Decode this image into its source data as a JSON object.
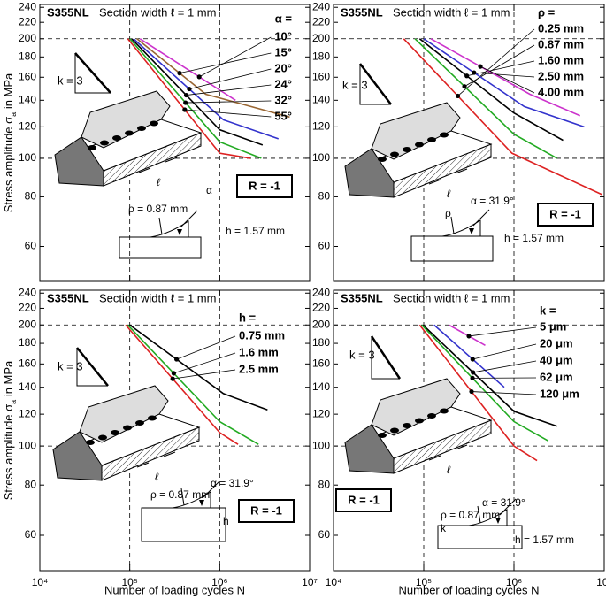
{
  "chart_data": [
    {
      "type": "line",
      "material": "S355NL",
      "section": "Section width ℓ = 1 mm",
      "y_label": [
        "Stress amplitude σ",
        "a",
        " in MPa"
      ],
      "xlim": [
        10000,
        10000000
      ],
      "xticks": [
        10000,
        100000,
        1000000,
        10000000
      ],
      "ylim": [
        49,
        244
      ],
      "yticks": [
        60,
        80,
        100,
        120,
        140,
        160,
        180,
        200,
        220,
        240
      ],
      "log_x": true,
      "log_y": true,
      "guides_x": [
        100000,
        1000000
      ],
      "guides_y": [
        100,
        200
      ],
      "legend_title": "α =",
      "series": [
        {
          "name": "10°",
          "color": "#cc33cc",
          "x": [
            130000,
            1500000
          ],
          "values": [
            200,
            140
          ]
        },
        {
          "name": "15°",
          "color": "#996633",
          "x": [
            120000,
            700000,
            6000000
          ],
          "values": [
            200,
            145,
            127
          ]
        },
        {
          "name": "20°",
          "color": "#3333cc",
          "x": [
            110000,
            1100000,
            4500000
          ],
          "values": [
            200,
            125,
            112
          ]
        },
        {
          "name": "24°",
          "color": "#000000",
          "x": [
            105000,
            1000000,
            3000000
          ],
          "values": [
            200,
            118,
            108
          ]
        },
        {
          "name": "32°",
          "color": "#22aa22",
          "x": [
            100000,
            1000000,
            2900000
          ],
          "values": [
            200,
            110,
            100
          ]
        },
        {
          "name": "55°",
          "color": "#dd2222",
          "x": [
            95000,
            1000000,
            2200000
          ],
          "values": [
            200,
            103,
            100
          ]
        }
      ],
      "load_ratio": "R = -1",
      "slope_label": "k = 3",
      "width_symbol": "ℓ",
      "notch_labels": [
        "ρ = 0.87 mm",
        "α",
        "h = 1.57 mm"
      ]
    },
    {
      "type": "line",
      "material": "S355NL",
      "section": "Section width ℓ = 1 mm",
      "xlim": [
        10000,
        10000000
      ],
      "xticks": [
        10000,
        100000,
        1000000,
        10000000
      ],
      "ylim": [
        49,
        244
      ],
      "yticks": [
        60,
        80,
        100,
        120,
        140,
        160,
        180,
        200,
        220,
        240
      ],
      "log_x": true,
      "log_y": true,
      "guides_x": [
        100000,
        1000000
      ],
      "guides_y": [
        100,
        200
      ],
      "legend_title": "ρ =",
      "series": [
        {
          "name": "0.25 mm",
          "color": "#dd2222",
          "x": [
            60000,
            950000,
            9500000
          ],
          "values": [
            200,
            103,
            81
          ]
        },
        {
          "name": "0.87 mm",
          "color": "#22aa22",
          "x": [
            80000,
            1000000,
            3000000
          ],
          "values": [
            200,
            115,
            100
          ]
        },
        {
          "name": "1.60 mm",
          "color": "#000000",
          "x": [
            90000,
            1000000,
            3500000
          ],
          "values": [
            200,
            130,
            111
          ]
        },
        {
          "name": "2.50 mm",
          "color": "#3333cc",
          "x": [
            100000,
            1300000,
            6000000
          ],
          "values": [
            200,
            135,
            120
          ]
        },
        {
          "name": "4.00 mm",
          "color": "#cc33cc",
          "x": [
            120000,
            1500000,
            5400000
          ],
          "values": [
            200,
            145,
            128
          ]
        }
      ],
      "load_ratio": "R = -1",
      "slope_label": "k = 3",
      "width_symbol": "ℓ",
      "notch_labels": [
        "ρ",
        "α = 31.9°",
        "h = 1.57 mm"
      ]
    },
    {
      "type": "line",
      "material": "S355NL",
      "section": "Section width ℓ = 1 mm",
      "y_label": [
        "Stress amplitude σ",
        "a",
        " in MPa"
      ],
      "x_label": "Number of loading cycles N",
      "xlim": [
        10000,
        10000000
      ],
      "xticks": [
        {
          "value": 10000,
          "label": "10⁴"
        },
        {
          "value": 100000,
          "label": "10⁵"
        },
        {
          "value": 1000000,
          "label": "10⁶"
        },
        {
          "value": 10000000,
          "label": "10⁷"
        }
      ],
      "ylim": [
        49,
        244
      ],
      "yticks": [
        60,
        80,
        100,
        120,
        140,
        160,
        180,
        200,
        220,
        240
      ],
      "log_x": true,
      "log_y": true,
      "guides_x": [
        100000,
        1000000
      ],
      "guides_y": [
        100,
        200
      ],
      "legend_title": "h =",
      "series": [
        {
          "name": "0.75 mm",
          "color": "#000000",
          "x": [
            100000,
            1100000,
            3400000
          ],
          "values": [
            200,
            135,
            123
          ]
        },
        {
          "name": "1.6 mm",
          "color": "#22aa22",
          "x": [
            95000,
            1000000,
            2700000
          ],
          "values": [
            200,
            115,
            101
          ]
        },
        {
          "name": "2.5 mm",
          "color": "#dd2222",
          "x": [
            90000,
            1000000,
            1600000
          ],
          "values": [
            200,
            108,
            101
          ]
        }
      ],
      "load_ratio": "R = -1",
      "slope_label": "k = 3",
      "width_symbol": "ℓ",
      "notch_labels": [
        "ρ = 0.87 mm",
        "α = 31.9°",
        "h"
      ]
    },
    {
      "type": "line",
      "material": "S355NL",
      "section": "Section width ℓ = 1 mm",
      "x_label": "Number of loading cycles N",
      "xlim": [
        10000,
        10000000
      ],
      "xticks": [
        {
          "value": 10000,
          "label": "10⁴"
        },
        {
          "value": 100000,
          "label": "10⁵"
        },
        {
          "value": 1000000,
          "label": "10⁶"
        },
        {
          "value": 10000000,
          "label": "10⁷"
        }
      ],
      "ylim": [
        49,
        244
      ],
      "yticks": [
        60,
        80,
        100,
        120,
        140,
        160,
        180,
        200,
        220,
        240
      ],
      "log_x": true,
      "log_y": true,
      "guides_x": [
        100000,
        1000000
      ],
      "guides_y": [
        100,
        200
      ],
      "legend_title": "k =",
      "series": [
        {
          "name": "5 μm",
          "color": "#cc33cc",
          "x": [
            190000,
            480000
          ],
          "values": [
            200,
            178
          ]
        },
        {
          "name": "20 μm",
          "color": "#3333cc",
          "x": [
            130000,
            780000
          ],
          "values": [
            200,
            140
          ]
        },
        {
          "name": "40 μm",
          "color": "#000000",
          "x": [
            98000,
            1000000,
            3000000
          ],
          "values": [
            200,
            122,
            112
          ]
        },
        {
          "name": "62 μm",
          "color": "#22aa22",
          "x": [
            95000,
            1000000,
            2400000
          ],
          "values": [
            200,
            115,
            103
          ]
        },
        {
          "name": "120 μm",
          "color": "#dd2222",
          "x": [
            90000,
            1000000,
            1800000
          ],
          "values": [
            200,
            100,
            92
          ]
        }
      ],
      "load_ratio": "R = -1",
      "slope_label": "k = 3",
      "width_symbol": "ℓ",
      "notch_labels": [
        "ρ = 0.87 mm",
        "α = 31.9°",
        "h = 1.57 mm",
        "k"
      ]
    }
  ]
}
